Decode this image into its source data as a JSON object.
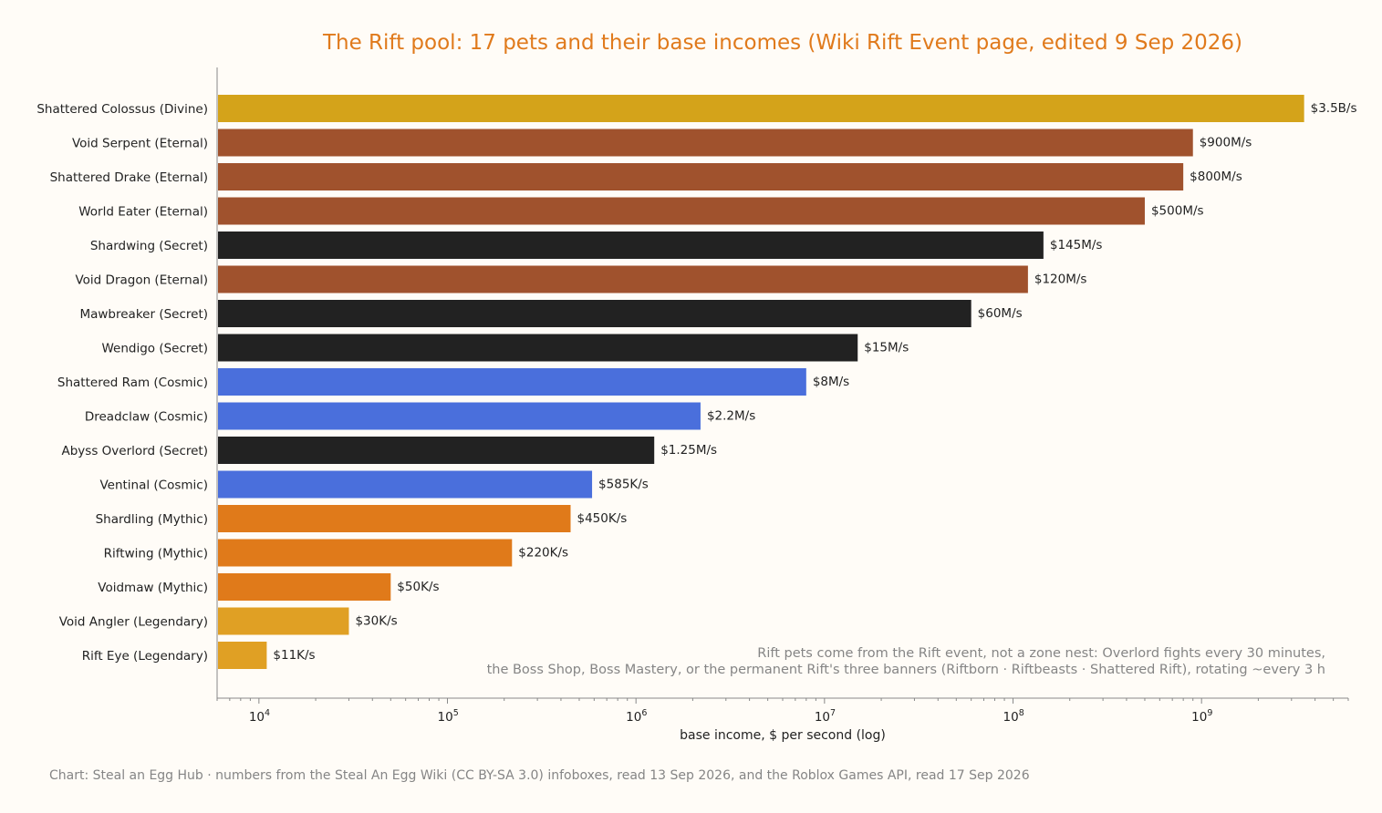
{
  "chart_data": {
    "type": "bar",
    "orientation": "horizontal",
    "title": "The Rift pool: 17 pets and their base incomes (Wiki Rift Event page, edited 9 Sep 2026)",
    "xlabel": "base income, $ per second (log)",
    "ylabel": "",
    "xscale": "log",
    "xlim": [
      6000,
      6000000000
    ],
    "grid": false,
    "colors": {
      "Divine": "#d4a31a",
      "Eternal": "#a0522d",
      "Secret": "#222222",
      "Cosmic": "#4a6fdc",
      "Mythic": "#e07a1a",
      "Legendary": "#e0a024"
    },
    "categories": [
      "Shattered Colossus (Divine)",
      "Void Serpent (Eternal)",
      "Shattered Drake (Eternal)",
      "World Eater (Eternal)",
      "Shardwing (Secret)",
      "Void Dragon (Eternal)",
      "Mawbreaker (Secret)",
      "Wendigo (Secret)",
      "Shattered Ram (Cosmic)",
      "Dreadclaw (Cosmic)",
      "Abyss Overlord (Secret)",
      "Ventinal (Cosmic)",
      "Shardling (Mythic)",
      "Riftwing (Mythic)",
      "Voidmaw (Mythic)",
      "Void Angler (Legendary)",
      "Rift Eye (Legendary)"
    ],
    "rarity": [
      "Divine",
      "Eternal",
      "Eternal",
      "Eternal",
      "Secret",
      "Eternal",
      "Secret",
      "Secret",
      "Cosmic",
      "Cosmic",
      "Secret",
      "Cosmic",
      "Mythic",
      "Mythic",
      "Mythic",
      "Legendary",
      "Legendary"
    ],
    "values": [
      3500000000,
      900000000,
      800000000,
      500000000,
      145000000,
      120000000,
      60000000,
      15000000,
      8000000,
      2200000,
      1250000,
      585000,
      450000,
      220000,
      50000,
      30000,
      11000
    ],
    "value_labels": [
      "$3.5B/s",
      "$900M/s",
      "$800M/s",
      "$500M/s",
      "$145M/s",
      "$120M/s",
      "$60M/s",
      "$15M/s",
      "$8M/s",
      "$2.2M/s",
      "$1.25M/s",
      "$585K/s",
      "$450K/s",
      "$220K/s",
      "$50K/s",
      "$30K/s",
      "$11K/s"
    ],
    "x_ticks": [
      {
        "value": 10000,
        "base": "10",
        "exp": "4"
      },
      {
        "value": 100000,
        "base": "10",
        "exp": "5"
      },
      {
        "value": 1000000,
        "base": "10",
        "exp": "6"
      },
      {
        "value": 10000000,
        "base": "10",
        "exp": "7"
      },
      {
        "value": 100000000,
        "base": "10",
        "exp": "8"
      },
      {
        "value": 1000000000,
        "base": "10",
        "exp": "9"
      }
    ],
    "annotation": [
      "Rift pets come from the Rift event, not a zone nest: Overlord fights every 30 minutes,",
      "the Boss Shop, Boss Mastery, or the permanent Rift's three banners (Riftborn · Riftbeasts · Shattered Rift), rotating ~every 3 h"
    ]
  },
  "footer": "Chart: Steal an Egg Hub · numbers from the Steal An Egg Wiki (CC BY-SA 3.0) infoboxes, read 13 Sep 2026, and the Roblox Games API, read 17 Sep 2026"
}
